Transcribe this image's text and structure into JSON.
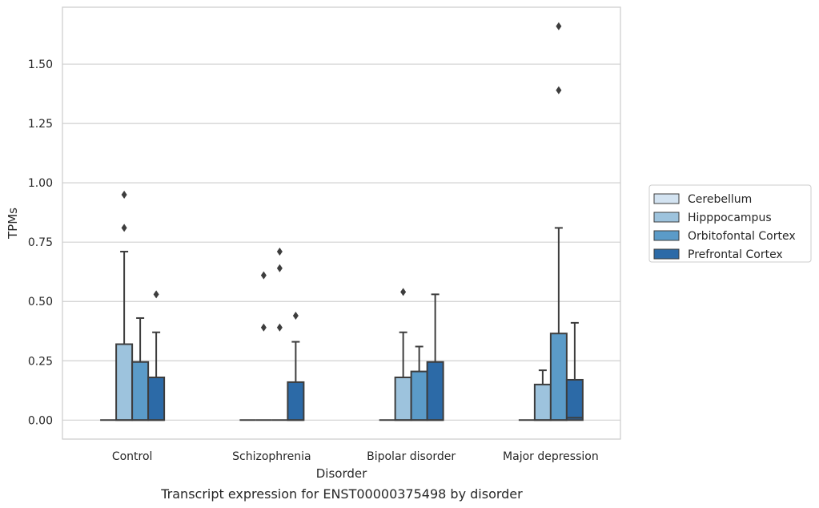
{
  "caption": "Transcript expression for ENST00000375498 by disorder",
  "chart_data": {
    "type": "box",
    "title": "",
    "xlabel": "Disorder",
    "ylabel": "TPMs",
    "ylim": [
      -0.08,
      1.74
    ],
    "yticks": [
      0.0,
      0.25,
      0.5,
      0.75,
      1.0,
      1.25,
      1.5
    ],
    "ytick_labels": [
      "0.00",
      "0.25",
      "0.50",
      "0.75",
      "1.00",
      "1.25",
      "1.50"
    ],
    "grid": "horizontal",
    "legend_position": "right",
    "categories": [
      "Control",
      "Schizophrenia",
      "Bipolar disorder",
      "Major depression"
    ],
    "series": [
      {
        "name": "Cerebellum",
        "color": "#d3e3f1",
        "boxes": [
          {
            "q1": 0,
            "median": 0,
            "q3": 0,
            "whisker_low": 0,
            "whisker_high": 0,
            "outliers": []
          },
          {
            "q1": 0,
            "median": 0,
            "q3": 0,
            "whisker_low": 0,
            "whisker_high": 0,
            "outliers": []
          },
          {
            "q1": 0,
            "median": 0,
            "q3": 0,
            "whisker_low": 0,
            "whisker_high": 0,
            "outliers": []
          },
          {
            "q1": 0,
            "median": 0,
            "q3": 0,
            "whisker_low": 0,
            "whisker_high": 0,
            "outliers": []
          }
        ]
      },
      {
        "name": "Hipppocampus",
        "color": "#9dc3dd",
        "boxes": [
          {
            "q1": 0,
            "median": 0,
            "q3": 0.32,
            "whisker_low": 0,
            "whisker_high": 0.71,
            "outliers": [
              0.81,
              0.95
            ]
          },
          {
            "q1": 0,
            "median": 0,
            "q3": 0,
            "whisker_low": 0,
            "whisker_high": 0,
            "outliers": [
              0.39,
              0.61
            ]
          },
          {
            "q1": 0,
            "median": 0,
            "q3": 0.18,
            "whisker_low": 0,
            "whisker_high": 0.37,
            "outliers": [
              0.54
            ]
          },
          {
            "q1": 0,
            "median": 0,
            "q3": 0.15,
            "whisker_low": 0,
            "whisker_high": 0.21,
            "outliers": []
          }
        ]
      },
      {
        "name": "Orbitofontal Cortex",
        "color": "#5b9bc8",
        "boxes": [
          {
            "q1": 0,
            "median": 0,
            "q3": 0.245,
            "whisker_low": 0,
            "whisker_high": 0.43,
            "outliers": []
          },
          {
            "q1": 0,
            "median": 0,
            "q3": 0,
            "whisker_low": 0,
            "whisker_high": 0,
            "outliers": [
              0.39,
              0.64,
              0.71
            ]
          },
          {
            "q1": 0,
            "median": 0,
            "q3": 0.205,
            "whisker_low": 0,
            "whisker_high": 0.31,
            "outliers": []
          },
          {
            "q1": 0,
            "median": 0,
            "q3": 0.365,
            "whisker_low": 0,
            "whisker_high": 0.81,
            "outliers": [
              1.39,
              1.66
            ]
          }
        ]
      },
      {
        "name": "Prefrontal Cortex",
        "color": "#2c6aa7",
        "boxes": [
          {
            "q1": 0,
            "median": 0,
            "q3": 0.18,
            "whisker_low": 0,
            "whisker_high": 0.37,
            "outliers": [
              0.53
            ]
          },
          {
            "q1": 0,
            "median": 0,
            "q3": 0.16,
            "whisker_low": 0,
            "whisker_high": 0.33,
            "outliers": [
              0.44
            ]
          },
          {
            "q1": 0,
            "median": 0,
            "q3": 0.245,
            "whisker_low": 0,
            "whisker_high": 0.53,
            "outliers": []
          },
          {
            "q1": 0,
            "median": 0.01,
            "q3": 0.17,
            "whisker_low": 0,
            "whisker_high": 0.41,
            "outliers": []
          }
        ]
      }
    ]
  }
}
